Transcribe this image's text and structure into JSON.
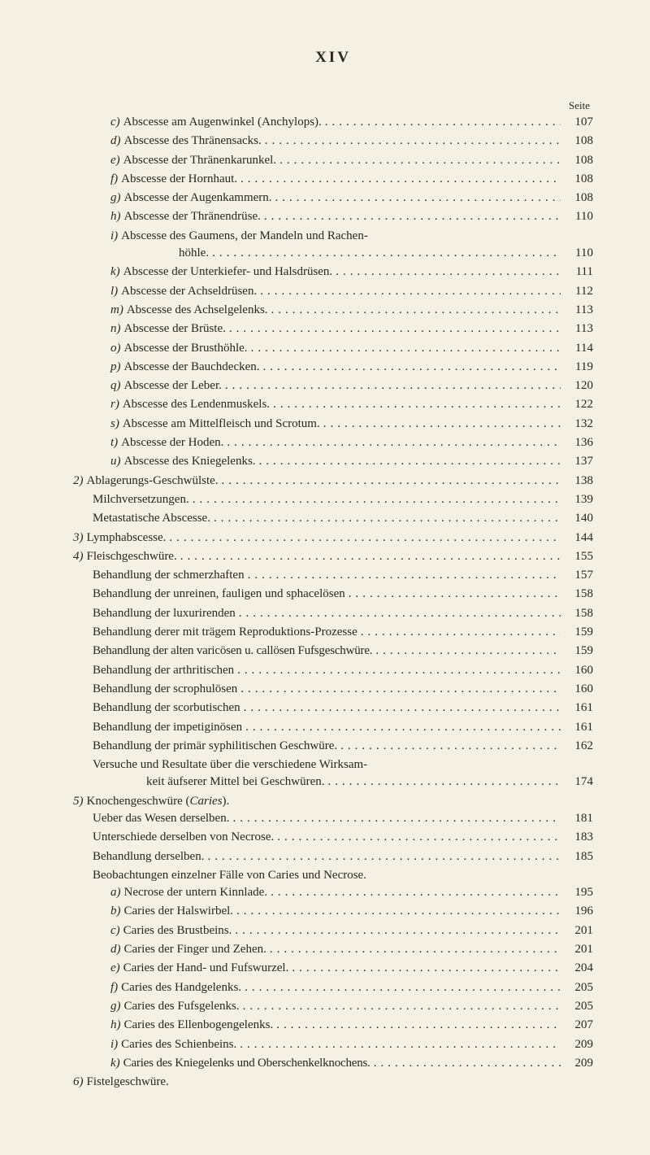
{
  "page_number_roman": "XIV",
  "column_header": "Seite",
  "dots_fill": ".............................................................................",
  "font": {
    "body_size_pt": 15,
    "header_size_pt": 19,
    "seite_size_pt": 13
  },
  "colors": {
    "bg": "#f5f0e4",
    "text": "#2a2620"
  },
  "entries": [
    {
      "indent": 2,
      "label": "c)",
      "text": "Abscesse am Augenwinkel (Anchylops).",
      "page": "107"
    },
    {
      "indent": 2,
      "label": "d)",
      "text": "Abscesse des Thränensacks.",
      "page": "108"
    },
    {
      "indent": 2,
      "label": "e)",
      "text": "Abscesse der Thränenkarunkel.",
      "page": "108"
    },
    {
      "indent": 2,
      "label": "f)",
      "text": "Abscesse der Hornhaut.",
      "page": "108"
    },
    {
      "indent": 2,
      "label": "g)",
      "text": "Abscesse der Augenkammern.",
      "page": "108"
    },
    {
      "indent": 2,
      "label": "h)",
      "text": "Abscesse der Thränendrüse.",
      "page": "110"
    },
    {
      "indent": 2,
      "label": "i)",
      "text": "Abscesse des Gaumens, der Mandeln und Rachen-",
      "page": "",
      "no_dots": true
    },
    {
      "indent": 2,
      "label": "",
      "text": "höhle.",
      "page": "110",
      "extra_class": "hohle"
    },
    {
      "indent": 2,
      "label": "k)",
      "text": "Abscesse der Unterkiefer- und Halsdrüsen.",
      "page": "111"
    },
    {
      "indent": 2,
      "label": "l)",
      "text": "Abscesse der Achseldrüsen.",
      "page": "112"
    },
    {
      "indent": 2,
      "label": "m)",
      "text": "Abscesse des Achselgelenks.",
      "page": "113"
    },
    {
      "indent": 2,
      "label": "n)",
      "text": "Abscesse der Brüste.",
      "page": "113"
    },
    {
      "indent": 2,
      "label": "o)",
      "text": "Abscesse der Brusthöhle.",
      "page": "114"
    },
    {
      "indent": 2,
      "label": "p)",
      "text": "Abscesse der Bauchdecken.",
      "page": "119"
    },
    {
      "indent": 2,
      "label": "q)",
      "text": "Abscesse der Leber.",
      "page": "120"
    },
    {
      "indent": 2,
      "label": "r)",
      "text": "Abscesse des Lendenmuskels.",
      "page": "122"
    },
    {
      "indent": 2,
      "label": "s)",
      "text": "Abscesse am Mittelfleisch und Scrotum.",
      "page": "132"
    },
    {
      "indent": 2,
      "label": "t)",
      "text": "Abscesse der Hoden.",
      "page": "136"
    },
    {
      "indent": 2,
      "label": "u)",
      "text": "Abscesse des Kniegelenks.",
      "page": "137"
    },
    {
      "indent": 0,
      "label": "2)",
      "text": "Ablagerungs-Geschwülste.",
      "page": "138"
    },
    {
      "indent": 1,
      "label": "",
      "text": "Milchversetzungen.",
      "page": "139"
    },
    {
      "indent": 1,
      "label": "",
      "text": "Metastatische Abscesse.",
      "page": "140"
    },
    {
      "indent": 0,
      "label": "3)",
      "text": "Lymphabscesse.",
      "page": "144"
    },
    {
      "indent": 0,
      "label": "4)",
      "text": "Fleischgeschwüre.",
      "page": "155"
    },
    {
      "indent": 1,
      "label": "",
      "text": "Behandlung der schmerzhaften",
      "page": "157",
      "pre_dots": false
    },
    {
      "indent": 1,
      "label": "",
      "text": "Behandlung der unreinen, fauligen und sphacelösen",
      "page": "158"
    },
    {
      "indent": 1,
      "label": "",
      "text": "Behandlung der luxurirenden",
      "page": "158"
    },
    {
      "indent": 1,
      "label": "",
      "text": "Behandlung derer mit trägem Reproduktions-Prozesse",
      "page": "159"
    },
    {
      "indent": 1,
      "label": "",
      "text": "Behandlung der alten varicösen u. callösen Fufsgeschwüre.",
      "page": "159",
      "tight": true
    },
    {
      "indent": 1,
      "label": "",
      "text": "Behandlung der arthritischen",
      "page": "160"
    },
    {
      "indent": 1,
      "label": "",
      "text": "Behandlung der scrophulösen",
      "page": "160"
    },
    {
      "indent": 1,
      "label": "",
      "text": "Behandlung der scorbutischen",
      "page": "161"
    },
    {
      "indent": 1,
      "label": "",
      "text": "Behandlung der impetiginösen",
      "page": "161"
    },
    {
      "indent": 1,
      "label": "",
      "text": "Behandlung der primär syphilitischen Geschwüre.",
      "page": "162"
    },
    {
      "indent": 1,
      "label": "",
      "text": "Versuche und Resultate über die verschiedene Wirksam-",
      "page": "",
      "no_dots": true
    },
    {
      "indent": 3,
      "label": "",
      "text": "keit äufserer Mittel bei Geschwüren.",
      "page": "174"
    },
    {
      "indent": 0,
      "label": "5)",
      "text": "Knochengeschwüre (Caries).",
      "page": "",
      "no_dots": true,
      "italic_word": "Caries"
    },
    {
      "indent": 1,
      "label": "",
      "text": "Ueber das Wesen derselben.",
      "page": "181"
    },
    {
      "indent": 1,
      "label": "",
      "text": "Unterschiede derselben von Necrose.",
      "page": "183"
    },
    {
      "indent": 1,
      "label": "",
      "text": "Behandlung derselben.",
      "page": "185"
    },
    {
      "indent": 1,
      "label": "",
      "text": "Beobachtungen einzelner Fälle von Caries und Necrose.",
      "page": "",
      "no_dots": true
    },
    {
      "indent": 2,
      "label": "a)",
      "text": "Necrose der untern Kinnlade.",
      "page": "195"
    },
    {
      "indent": 2,
      "label": "b)",
      "text": "Caries der Halswirbel.",
      "page": "196"
    },
    {
      "indent": 2,
      "label": "c)",
      "text": "Caries des Brustbeins.",
      "page": "201"
    },
    {
      "indent": 2,
      "label": "d)",
      "text": "Caries der Finger und Zehen.",
      "page": "201"
    },
    {
      "indent": 2,
      "label": "e)",
      "text": "Caries der Hand- und Fufswurzel.",
      "page": "204"
    },
    {
      "indent": 2,
      "label": "f)",
      "text": "Caries des Handgelenks.",
      "page": "205"
    },
    {
      "indent": 2,
      "label": "g)",
      "text": "Caries des Fufsgelenks.",
      "page": "205"
    },
    {
      "indent": 2,
      "label": "h)",
      "text": "Caries des Ellenbogengelenks.",
      "page": "207"
    },
    {
      "indent": 2,
      "label": "i)",
      "text": "Caries des Schienbeins.",
      "page": "209"
    },
    {
      "indent": 2,
      "label": "k)",
      "text": "Caries des Kniegelenks und Oberschenkelknochens.",
      "page": "209",
      "tight": true
    },
    {
      "indent": 0,
      "label": "6)",
      "text": "Fistelgeschwüre.",
      "page": "",
      "no_dots": true
    }
  ]
}
